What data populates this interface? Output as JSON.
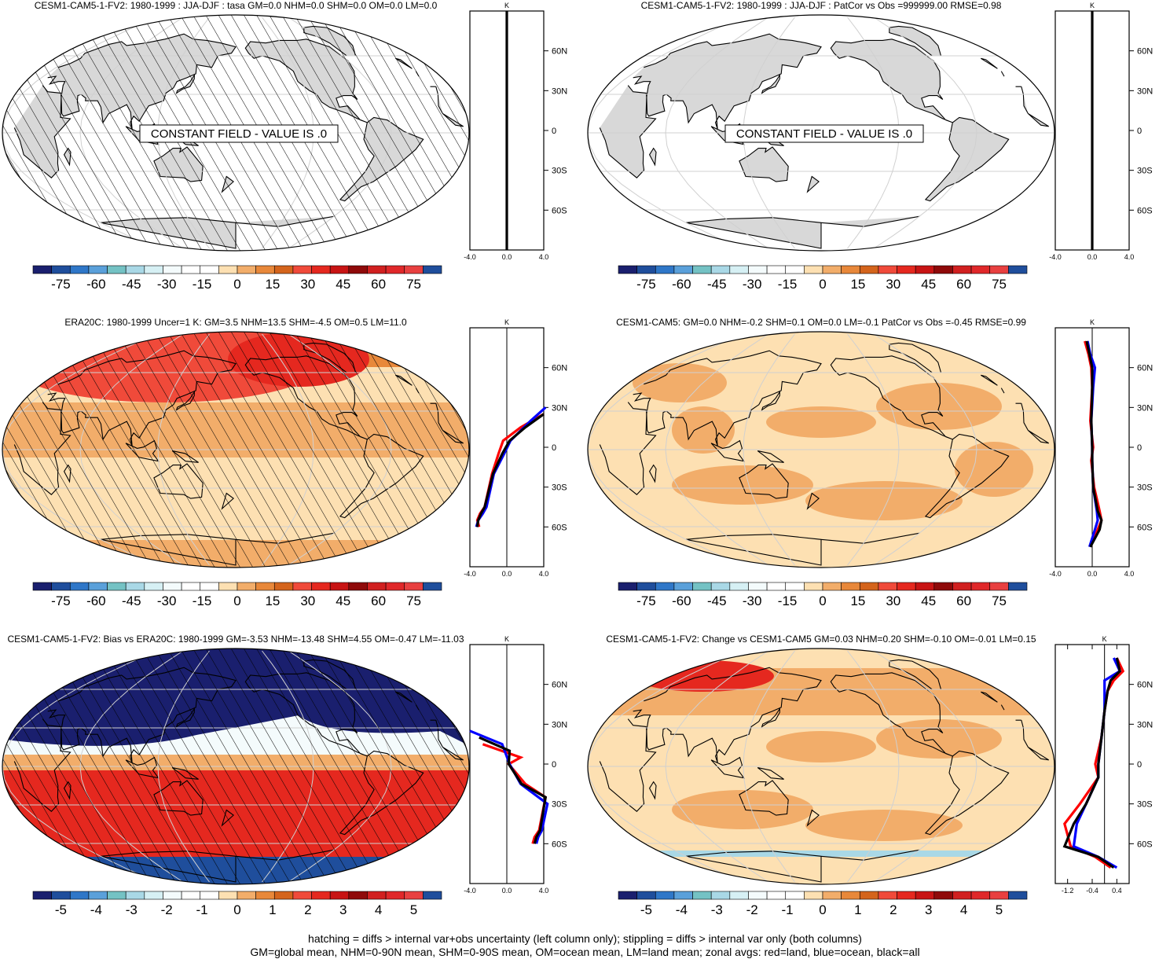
{
  "panels": [
    {
      "title": "CESM1-CAM5-1-FV2: 1980-1999 : JJA-DJF : tasa GM=0.0 NHM=0.0 SHM=0.0 OM=0.0 LM=0.0",
      "field": "constant",
      "constant_label": "CONSTANT FIELD - VALUE IS .0",
      "hatching": true,
      "zonal_unit": "K",
      "zonal_xticks": [
        "-4.0",
        "0.0",
        "4.0"
      ],
      "zonal_yticks": [
        "60N",
        "30N",
        "0",
        "30S",
        "60S"
      ],
      "colorbar_labels": [
        "-75",
        "-60",
        "-45",
        "-30",
        "-15",
        "0",
        "15",
        "30",
        "45",
        "60",
        "75"
      ]
    },
    {
      "title": "CESM1-CAM5-1-FV2: 1980-1999 : JJA-DJF : PatCor vs Obs =999999.00 RMSE=0.98",
      "field": "constant",
      "constant_label": "CONSTANT FIELD - VALUE IS .0",
      "hatching": false,
      "zonal_unit": "K",
      "zonal_xticks": [
        "-4.0",
        "0.0",
        "4.0"
      ],
      "zonal_yticks": [
        "60N",
        "30N",
        "0",
        "30S",
        "60S"
      ],
      "colorbar_labels": [
        "-75",
        "-60",
        "-45",
        "-30",
        "-15",
        "0",
        "15",
        "30",
        "45",
        "60",
        "75"
      ]
    },
    {
      "title": "ERA20C: 1980-1999 Uncer=1 K: GM=3.5 NHM=13.5 SHM=-4.5 OM=0.5 LM=11.0",
      "field": "warm",
      "hatching": true,
      "zonal_unit": "K",
      "zonal_xticks": [
        "-4.0",
        "0.0",
        "4.0"
      ],
      "zonal_yticks": [
        "60N",
        "30N",
        "0",
        "30S",
        "60S"
      ],
      "colorbar_labels": [
        "-75",
        "-60",
        "-45",
        "-30",
        "-15",
        "0",
        "15",
        "30",
        "45",
        "60",
        "75"
      ]
    },
    {
      "title": "CESM1-CAM5: GM=0.0 NHM=-0.2 SHM=0.1 OM=0.0 LM=-0.1 PatCor vs Obs =-0.45 RMSE=0.99",
      "field": "light",
      "hatching": false,
      "zonal_unit": "K",
      "zonal_xticks": [
        "-4.0",
        "0.0",
        "4.0"
      ],
      "zonal_yticks": [
        "60N",
        "30N",
        "0",
        "30S",
        "60S"
      ],
      "colorbar_labels": [
        "-75",
        "-60",
        "-45",
        "-30",
        "-15",
        "0",
        "15",
        "30",
        "45",
        "60",
        "75"
      ]
    },
    {
      "title": "CESM1-CAM5-1-FV2: Bias vs ERA20C: 1980-1999 GM=-3.53 NHM=-13.48 SHM=4.55 OM=-0.47 LM=-11.03",
      "field": "bias",
      "hatching": true,
      "zonal_unit": "K",
      "zonal_xticks": [
        "-4.0",
        "0.0",
        "4.0"
      ],
      "zonal_yticks": [
        "60N",
        "30N",
        "0",
        "30S",
        "60S"
      ],
      "colorbar_labels": [
        "-5",
        "-4",
        "-3",
        "-2",
        "-1",
        "0",
        "1",
        "2",
        "3",
        "4",
        "5"
      ]
    },
    {
      "title": "CESM1-CAM5-1-FV2: Change vs CESM1-CAM5 GM=0.03 NHM=0.20 SHM=-0.10 OM=-0.01 LM=0.15",
      "field": "change",
      "hatching": false,
      "zonal_unit": "K",
      "zonal_xticks": [
        "-1.2",
        "-0.4",
        "0.4"
      ],
      "zonal_yticks": [
        "60N",
        "30N",
        "0",
        "30S",
        "60S"
      ],
      "colorbar_labels": [
        "-5",
        "-4",
        "-3",
        "-2",
        "-1",
        "0",
        "1",
        "2",
        "3",
        "4",
        "5"
      ]
    }
  ],
  "colors": {
    "colorbar": [
      "#1a1f6e",
      "#1f4e9c",
      "#2f77c8",
      "#5aa0da",
      "#74c2c4",
      "#a9d8e6",
      "#d6f0f4",
      "#f4fbfc",
      "#ffffff",
      "#ffffff",
      "#fde0b2",
      "#f2ad6a",
      "#e8883a",
      "#d4641c",
      "#f04a3a",
      "#e5281f",
      "#c81414",
      "#8f0a0a",
      "#d12020",
      "#e0282a",
      "#e84040",
      "#1f4e9c"
    ],
    "land": "#d8d8d8",
    "grid": "#d0d0d0",
    "zonal_land": "#ff0000",
    "zonal_ocean": "#0000ff",
    "zonal_all": "#000000"
  },
  "chart_data": [
    {
      "type": "line",
      "title": "CESM1-CAM5-1-FV2: 1980-1999 : JJA-DJF : tasa GM=0.0 NHM=0.0 SHM=0.0 OM=0.0 LM=0.0",
      "xlabel": "K",
      "xlim": [
        -4,
        4
      ],
      "ylim": [
        -90,
        90
      ],
      "series": [
        {
          "name": "all",
          "x": [
            0,
            0,
            0,
            0,
            0,
            0,
            0
          ],
          "y": [
            -90,
            -60,
            -30,
            0,
            30,
            60,
            90
          ]
        }
      ]
    },
    {
      "type": "line",
      "title": "CESM1-CAM5-1-FV2: 1980-1999 : JJA-DJF : PatCor vs Obs =999999.00 RMSE=0.98",
      "xlabel": "K",
      "xlim": [
        -4,
        4
      ],
      "ylim": [
        -90,
        90
      ],
      "series": [
        {
          "name": "all",
          "x": [
            0,
            0,
            0,
            0,
            0,
            0,
            0
          ],
          "y": [
            -90,
            -60,
            -30,
            0,
            30,
            60,
            90
          ]
        }
      ]
    },
    {
      "type": "line",
      "title": "ERA20C: 1980-1999 Uncer=1 K: GM=3.5 NHM=13.5 SHM=-4.5 OM=0.5 LM=11.0",
      "xlabel": "K",
      "xlim": [
        -4,
        4
      ],
      "ylim": [
        -90,
        90
      ],
      "series": [
        {
          "name": "land",
          "x": [
            -3.0,
            -3.2,
            -2.9,
            -2.4,
            -1.6,
            -0.9,
            -0.4,
            1.5,
            4.0
          ],
          "y": [
            -60,
            -55,
            -50,
            -45,
            -20,
            -5,
            5,
            15,
            25
          ]
        },
        {
          "name": "ocean",
          "x": [
            -3.3,
            -3.1,
            -2.6,
            -2.2,
            -1.4,
            -0.3,
            0.4,
            2.6,
            4.2
          ],
          "y": [
            -60,
            -55,
            -50,
            -45,
            -20,
            -5,
            5,
            20,
            30
          ]
        },
        {
          "name": "all",
          "x": [
            -3.2,
            -3.1,
            -2.8,
            -2.4,
            -1.5,
            -0.5,
            0.3,
            2.0,
            4.0
          ],
          "y": [
            -60,
            -55,
            -50,
            -45,
            -20,
            -5,
            5,
            15,
            25
          ]
        }
      ]
    },
    {
      "type": "line",
      "title": "CESM1-CAM5: GM=0.0 NHM=-0.2 SHM=0.1 OM=0.0 LM=-0.1 PatCor vs Obs =-0.45 RMSE=0.99",
      "xlabel": "K",
      "xlim": [
        -4,
        4
      ],
      "ylim": [
        -90,
        90
      ],
      "series": [
        {
          "name": "land",
          "x": [
            -0.2,
            0.6,
            1.0,
            0.8,
            0.2,
            -0.1,
            0.1,
            -0.2,
            0.0,
            -0.1,
            -0.4,
            -0.8
          ],
          "y": [
            -75,
            -62,
            -55,
            -48,
            -30,
            -10,
            0,
            20,
            45,
            60,
            70,
            80
          ]
        },
        {
          "name": "ocean",
          "x": [
            -0.3,
            0.3,
            0.6,
            0.5,
            0.1,
            0.0,
            0.0,
            -0.1,
            0.1,
            0.3,
            -0.2,
            -0.5
          ],
          "y": [
            -75,
            -62,
            -55,
            -48,
            -30,
            -10,
            0,
            20,
            45,
            60,
            70,
            80
          ]
        },
        {
          "name": "all",
          "x": [
            -0.2,
            0.8,
            1.0,
            0.6,
            0.1,
            0.0,
            0.0,
            -0.1,
            0.0,
            0.0,
            -0.3,
            -0.6
          ],
          "y": [
            -75,
            -62,
            -55,
            -48,
            -30,
            -10,
            0,
            20,
            45,
            60,
            70,
            80
          ]
        }
      ]
    },
    {
      "type": "line",
      "title": "CESM1-CAM5-1-FV2: Bias vs ERA20C: 1980-1999 GM=-3.53 NHM=-13.48 SHM=4.55 OM=-0.47 LM=-11.03",
      "xlabel": "K",
      "xlim": [
        -4,
        4
      ],
      "ylim": [
        -90,
        90
      ],
      "series": [
        {
          "name": "land",
          "x": [
            2.8,
            3.0,
            3.5,
            4.2,
            2.0,
            0.2,
            1.5,
            -2.6
          ],
          "y": [
            -60,
            -55,
            -50,
            -25,
            -15,
            0,
            5,
            15
          ]
        },
        {
          "name": "ocean",
          "x": [
            3.2,
            3.4,
            3.8,
            4.4,
            1.5,
            0.3,
            -0.5,
            -4.0
          ],
          "y": [
            -60,
            -55,
            -50,
            -30,
            -15,
            0,
            15,
            25
          ]
        },
        {
          "name": "all",
          "x": [
            3.0,
            3.2,
            3.6,
            4.2,
            1.6,
            0.2,
            0.3,
            -3.0
          ],
          "y": [
            -60,
            -55,
            -50,
            -25,
            -15,
            0,
            10,
            20
          ]
        }
      ]
    },
    {
      "type": "line",
      "title": "CESM1-CAM5-1-FV2: Change vs CESM1-CAM5 GM=0.03 NHM=0.20 SHM=-0.10 OM=-0.01 LM=0.15",
      "xlabel": "K",
      "xlim": [
        -1.6,
        0.8
      ],
      "ylim": [
        -90,
        90
      ],
      "series": [
        {
          "name": "land",
          "x": [
            0.2,
            -0.3,
            -1.1,
            -1.3,
            -0.8,
            -0.2,
            -0.3,
            -0.1,
            0.0,
            0.1,
            0.3,
            0.6,
            0.4
          ],
          "y": [
            -78,
            -70,
            -62,
            -45,
            -30,
            -10,
            0,
            20,
            40,
            55,
            63,
            70,
            80
          ]
        },
        {
          "name": "ocean",
          "x": [
            0.4,
            -0.2,
            -1.0,
            -0.9,
            -0.6,
            -0.2,
            -0.2,
            -0.1,
            0.0,
            0.0,
            0.0,
            0.5,
            0.3
          ],
          "y": [
            -78,
            -70,
            -62,
            -45,
            -30,
            -10,
            0,
            20,
            40,
            55,
            63,
            70,
            80
          ]
        },
        {
          "name": "all",
          "x": [
            0.3,
            -0.2,
            -1.3,
            -1.0,
            -0.6,
            -0.2,
            -0.2,
            -0.1,
            0.0,
            0.1,
            0.2,
            0.5,
            0.4
          ],
          "y": [
            -78,
            -70,
            -62,
            -45,
            -30,
            -10,
            0,
            20,
            40,
            55,
            63,
            70,
            80
          ]
        }
      ]
    }
  ],
  "footer": {
    "line1": "hatching = diffs > internal var+obs uncertainty (left column only); stippling = diffs > internal var only (both columns)",
    "line2": "GM=global mean, NHM=0-90N mean, SHM=0-90S mean, OM=ocean mean, LM=land mean; zonal avgs: red=land, blue=ocean, black=all"
  }
}
